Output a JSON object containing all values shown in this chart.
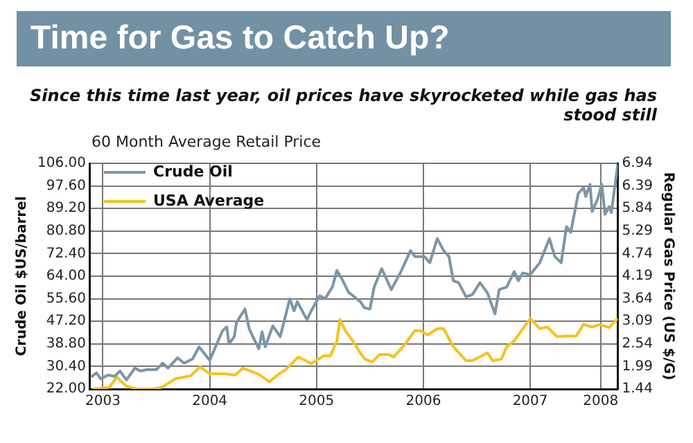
{
  "chart_data": {
    "type": "line",
    "title": "Time for Gas to Catch Up?",
    "subtitle": "Since this time last year, oil prices have skyrocketed while gas has stood still",
    "annotations": [
      "60 Month Average Retail Price"
    ],
    "ylabel": "Crude Oil $US/barrel",
    "y2label": "Regular Gas Price (US $/G)",
    "xlim": [
      2002.88,
      2007.82
    ],
    "xticks": [
      2003,
      2004,
      2005,
      2006,
      2007,
      {
        "value": 2007.66,
        "label": "2008"
      }
    ],
    "ylim": [
      22,
      106
    ],
    "yticks": [
      {
        "value": 22,
        "label": "22.00"
      },
      {
        "value": 30.4,
        "label": "30.40"
      },
      {
        "value": 38.8,
        "label": "38.80"
      },
      {
        "value": 47.2,
        "label": "47.20"
      },
      {
        "value": 55.6,
        "label": "55.60"
      },
      {
        "value": 64,
        "label": "64.00"
      },
      {
        "value": 72.4,
        "label": "72.40"
      },
      {
        "value": 80.8,
        "label": "80.80"
      },
      {
        "value": 89.2,
        "label": "89.20"
      },
      {
        "value": 97.6,
        "label": "97.60"
      },
      {
        "value": 106,
        "label": "106.00"
      }
    ],
    "y2lim": [
      1.44,
      6.94
    ],
    "y2ticks": [
      1.44,
      1.99,
      2.54,
      3.09,
      3.64,
      4.19,
      4.74,
      5.29,
      5.84,
      6.39,
      6.94
    ],
    "grid": true,
    "legend": "top left",
    "marker": "none",
    "line_style": "solid",
    "series": [
      {
        "name": "Crude Oil",
        "color": "#7b96a8",
        "x": [
          2002.89,
          2002.94,
          2002.98,
          2003.05,
          2003.11,
          2003.16,
          2003.22,
          2003.3,
          2003.35,
          2003.41,
          2003.5,
          2003.56,
          2003.61,
          2003.7,
          2003.76,
          2003.84,
          2003.9,
          2004.0,
          2004.12,
          2004.16,
          2004.18,
          2004.23,
          2004.25,
          2004.33,
          2004.37,
          2004.41,
          2004.46,
          2004.49,
          2004.52,
          2004.59,
          2004.66,
          2004.75,
          2004.79,
          2004.82,
          2004.91,
          2004.95,
          2005.03,
          2005.08,
          2005.15,
          2005.19,
          2005.24,
          2005.3,
          2005.41,
          2005.45,
          2005.5,
          2005.54,
          2005.61,
          2005.7,
          2005.79,
          2005.88,
          2005.92,
          2006.01,
          2006.06,
          2006.13,
          2006.19,
          2006.24,
          2006.28,
          2006.33,
          2006.4,
          2006.46,
          2006.53,
          2006.6,
          2006.67,
          2006.71,
          2006.78,
          2006.85,
          2006.89,
          2006.93,
          2007.0,
          2007.09,
          2007.18,
          2007.23,
          2007.29,
          2007.34,
          2007.38,
          2007.45,
          2007.5,
          2007.52,
          2007.56,
          2007.58,
          2007.63,
          2007.67,
          2007.7,
          2007.74,
          2007.76,
          2007.82
        ],
        "values": [
          26.5,
          28.0,
          25.8,
          27.2,
          26.7,
          28.7,
          25.4,
          29.8,
          28.7,
          29.2,
          29.2,
          31.6,
          29.8,
          33.6,
          31.6,
          33.2,
          37.7,
          32.7,
          43.7,
          45.1,
          38.8,
          41.5,
          46.7,
          51.8,
          44.4,
          41.0,
          37.0,
          43.3,
          37.7,
          45.5,
          41.5,
          55.6,
          51.1,
          54.5,
          47.8,
          51.1,
          56.7,
          55.6,
          60.1,
          66.1,
          62.8,
          58.0,
          54.5,
          52.2,
          51.8,
          60.0,
          66.8,
          59.0,
          65.7,
          73.5,
          71.3,
          71.3,
          69.0,
          78.0,
          73.5,
          71.3,
          62.3,
          61.6,
          56.3,
          57.2,
          61.6,
          57.8,
          50.0,
          59.0,
          60.0,
          65.7,
          62.3,
          65.2,
          64.6,
          69.0,
          78.0,
          71.3,
          69.0,
          82.5,
          80.3,
          94.8,
          97.0,
          93.7,
          98.2,
          88.1,
          92.6,
          98.2,
          87.0,
          89.9,
          87.7,
          105.6
        ]
      },
      {
        "name": "USA Average",
        "color": "#f7c21b",
        "axis": "y2",
        "x": [
          2002.9,
          2003.06,
          2003.13,
          2003.22,
          2003.32,
          2003.46,
          2003.55,
          2003.68,
          2003.82,
          2003.91,
          2004.0,
          2004.13,
          2004.24,
          2004.31,
          2004.45,
          2004.56,
          2004.65,
          2004.71,
          2004.83,
          2004.95,
          2005.07,
          2005.13,
          2005.19,
          2005.22,
          2005.27,
          2005.34,
          2005.41,
          2005.45,
          2005.52,
          2005.59,
          2005.68,
          2005.72,
          2005.81,
          2005.92,
          2005.97,
          2006.04,
          2006.13,
          2006.19,
          2006.28,
          2006.4,
          2006.46,
          2006.6,
          2006.65,
          2006.73,
          2006.78,
          2006.85,
          2007.0,
          2007.09,
          2007.16,
          2007.25,
          2007.34,
          2007.43,
          2007.5,
          2007.58,
          2007.65,
          2007.74,
          2007.82
        ],
        "values": [
          1.44,
          1.48,
          1.73,
          1.51,
          1.44,
          1.44,
          1.48,
          1.69,
          1.76,
          1.98,
          1.81,
          1.81,
          1.78,
          1.95,
          1.81,
          1.62,
          1.81,
          1.91,
          2.22,
          2.06,
          2.25,
          2.25,
          2.61,
          3.13,
          2.86,
          2.61,
          2.32,
          2.17,
          2.1,
          2.28,
          2.28,
          2.22,
          2.47,
          2.86,
          2.86,
          2.76,
          2.91,
          2.91,
          2.47,
          2.13,
          2.13,
          2.32,
          2.13,
          2.17,
          2.47,
          2.61,
          3.16,
          2.91,
          2.95,
          2.72,
          2.73,
          2.73,
          3.02,
          2.95,
          3.01,
          2.94,
          3.16
        ]
      }
    ]
  }
}
